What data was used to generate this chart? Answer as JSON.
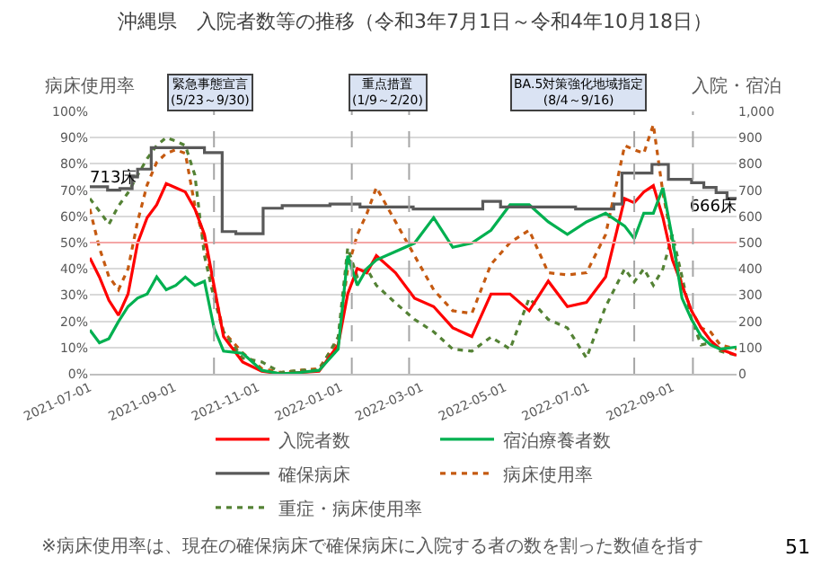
{
  "chart_data": {
    "type": "line",
    "title": "沖縄県　入院者数等の推移（令和3年7月1日～令和4年10月18日）",
    "ylabel": "病床使用率",
    "y2label": "入院・宿泊",
    "x": [
      "2021-07-01",
      "2021-07-08",
      "2021-07-15",
      "2021-07-22",
      "2021-07-29",
      "2021-08-05",
      "2021-08-12",
      "2021-08-19",
      "2021-08-26",
      "2021-09-02",
      "2021-09-09",
      "2021-09-16",
      "2021-09-23",
      "2021-09-30",
      "2021-10-07",
      "2021-10-21",
      "2021-11-04",
      "2021-11-18",
      "2021-12-02",
      "2021-12-16",
      "2021-12-30",
      "2022-01-06",
      "2022-01-13",
      "2022-01-20",
      "2022-01-27",
      "2022-02-10",
      "2022-02-24",
      "2022-03-10",
      "2022-03-24",
      "2022-04-07",
      "2022-04-21",
      "2022-05-05",
      "2022-05-19",
      "2022-06-02",
      "2022-06-16",
      "2022-06-30",
      "2022-07-14",
      "2022-07-28",
      "2022-08-04",
      "2022-08-11",
      "2022-08-18",
      "2022-08-25",
      "2022-09-01",
      "2022-09-08",
      "2022-09-15",
      "2022-09-22",
      "2022-09-29",
      "2022-10-06",
      "2022-10-18"
    ],
    "series": [
      {
        "name": "入院者数",
        "color": "#ff0000",
        "axis": "y2",
        "values": [
          442,
          369,
          280,
          223,
          304,
          498,
          595,
          644,
          725,
          709,
          693,
          628,
          531,
          337,
          142,
          45,
          10,
          0,
          5,
          10,
          110,
          304,
          401,
          385,
          450,
          385,
          288,
          256,
          175,
          142,
          304,
          304,
          240,
          353,
          256,
          272,
          369,
          668,
          652,
          693,
          717,
          595,
          434,
          337,
          240,
          175,
          126,
          94,
          70
        ]
      },
      {
        "name": "宿泊療養者数",
        "color": "#00b050",
        "axis": "y2",
        "values": [
          167,
          118,
          134,
          199,
          256,
          288,
          304,
          369,
          320,
          337,
          369,
          337,
          353,
          175,
          86,
          78,
          13,
          0,
          5,
          13,
          94,
          450,
          337,
          401,
          434,
          466,
          498,
          595,
          482,
          498,
          547,
          644,
          644,
          579,
          531,
          579,
          612,
          563,
          515,
          612,
          612,
          709,
          515,
          288,
          207,
          142,
          110,
          94,
          102
        ]
      },
      {
        "name": "確保病床",
        "color": "#595959",
        "axis": "y2",
        "type": "step",
        "x": [
          "2021-07-01",
          "2021-07-14",
          "2021-07-23",
          "2021-08-01",
          "2021-08-05",
          "2021-08-15",
          "2021-09-14",
          "2021-09-23",
          "2021-10-06",
          "2021-10-16",
          "2021-11-05",
          "2021-11-19",
          "2021-12-24",
          "2022-01-15",
          "2022-02-23",
          "2022-04-15",
          "2022-04-28",
          "2022-06-22",
          "2022-07-20",
          "2022-07-26",
          "2022-08-17",
          "2022-08-29",
          "2022-09-15",
          "2022-09-24",
          "2022-10-03",
          "2022-10-11",
          "2022-10-18"
        ],
        "values": [
          713,
          700,
          706,
          750,
          780,
          862,
          862,
          843,
          542,
          534,
          631,
          641,
          647,
          636,
          628,
          657,
          636,
          628,
          647,
          765,
          798,
          741,
          728,
          710,
          690,
          668,
          666
        ],
        "value_labels": [
          "713床",
          null,
          null,
          null,
          null,
          null,
          null,
          null,
          null,
          null,
          null,
          null,
          null,
          null,
          null,
          null,
          null,
          null,
          null,
          null,
          null,
          null,
          null,
          null,
          null,
          null,
          "666床"
        ]
      },
      {
        "name": "病床使用率",
        "color": "#c55a11",
        "line_style": "dotted",
        "values": [
          62.8,
          48,
          37,
          32,
          40,
          58,
          72,
          80.6,
          84,
          85.4,
          84,
          64,
          50,
          32,
          16,
          8,
          2,
          0.5,
          1.3,
          2,
          13,
          40,
          53,
          61,
          71,
          58,
          45,
          32,
          24,
          23,
          41.7,
          50,
          54.7,
          38.5,
          37.7,
          38.5,
          53,
          87,
          85.4,
          84,
          95,
          69,
          50,
          33.7,
          24,
          17.5,
          15.9,
          11,
          9.4
        ]
      },
      {
        "name": "重症・病床使用率",
        "color": "#548235",
        "line_style": "dotted",
        "values": [
          66.8,
          62,
          57,
          64,
          69,
          75.7,
          82,
          87,
          90,
          88.7,
          87,
          75.7,
          45,
          28.8,
          16,
          6,
          4.5,
          0.5,
          1.3,
          1.3,
          14,
          48,
          37,
          40,
          33.7,
          27,
          20.7,
          16,
          9.4,
          8.6,
          14,
          9.4,
          28.8,
          20.7,
          17.5,
          6,
          25.6,
          40,
          35,
          40,
          33.7,
          40,
          53,
          37,
          20.7,
          11,
          11.8,
          8.6,
          7
        ]
      }
    ],
    "xlim": [
      "2021-07-01",
      "2022-10-18"
    ],
    "xticks": [
      "2021-07-01",
      "2021-09-01",
      "2021-11-01",
      "2022-01-01",
      "2022-03-01",
      "2022-05-01",
      "2022-07-01",
      "2022-09-01"
    ],
    "ylim": [
      0,
      100
    ],
    "yticks": [
      {
        "value": 0,
        "label": "0%"
      },
      {
        "value": 10,
        "label": "10%"
      },
      {
        "value": 20,
        "label": "20%"
      },
      {
        "value": 30,
        "label": "30%"
      },
      {
        "value": 40,
        "label": "40%"
      },
      {
        "value": 50,
        "label": "50%"
      },
      {
        "value": 60,
        "label": "60%"
      },
      {
        "value": 70,
        "label": "70%"
      },
      {
        "value": 80,
        "label": "80%"
      },
      {
        "value": 90,
        "label": "90%"
      },
      {
        "value": 100,
        "label": "100%"
      }
    ],
    "y2lim": [
      0,
      1000
    ],
    "y2ticks": [
      0,
      100,
      200,
      300,
      400,
      500,
      600,
      700,
      800,
      900,
      {
        "value": 1000,
        "label": "1,000"
      }
    ],
    "ref_lines": [
      {
        "axis": "y",
        "value": 50,
        "color": "#f4a6a6"
      },
      {
        "axis": "x",
        "value": "2021-09-30",
        "color": "#a6a6a6",
        "line_style": "dashed"
      },
      {
        "axis": "x",
        "value": "2022-01-09",
        "color": "#a6a6a6",
        "line_style": "dashed"
      },
      {
        "axis": "x",
        "value": "2022-02-20",
        "color": "#a6a6a6",
        "line_style": "dashed"
      },
      {
        "axis": "x",
        "value": "2022-08-04",
        "color": "#a6a6a6",
        "line_style": "dashed"
      },
      {
        "axis": "x",
        "value": "2022-09-16",
        "color": "#a6a6a6",
        "line_style": "dashed"
      }
    ],
    "annotations": [
      "緊急事態宣言\n(5/23～9/30)",
      "重点措置\n(1/9～2/20)",
      "BA.5対策強化地域指定\n(8/4～9/16)",
      "※病床使用率は、現在の確保病床で確保病床に入院する者の数を割った数値を指す",
      "51"
    ],
    "grid": "y",
    "legend": "bottom",
    "line_style": "solid"
  }
}
